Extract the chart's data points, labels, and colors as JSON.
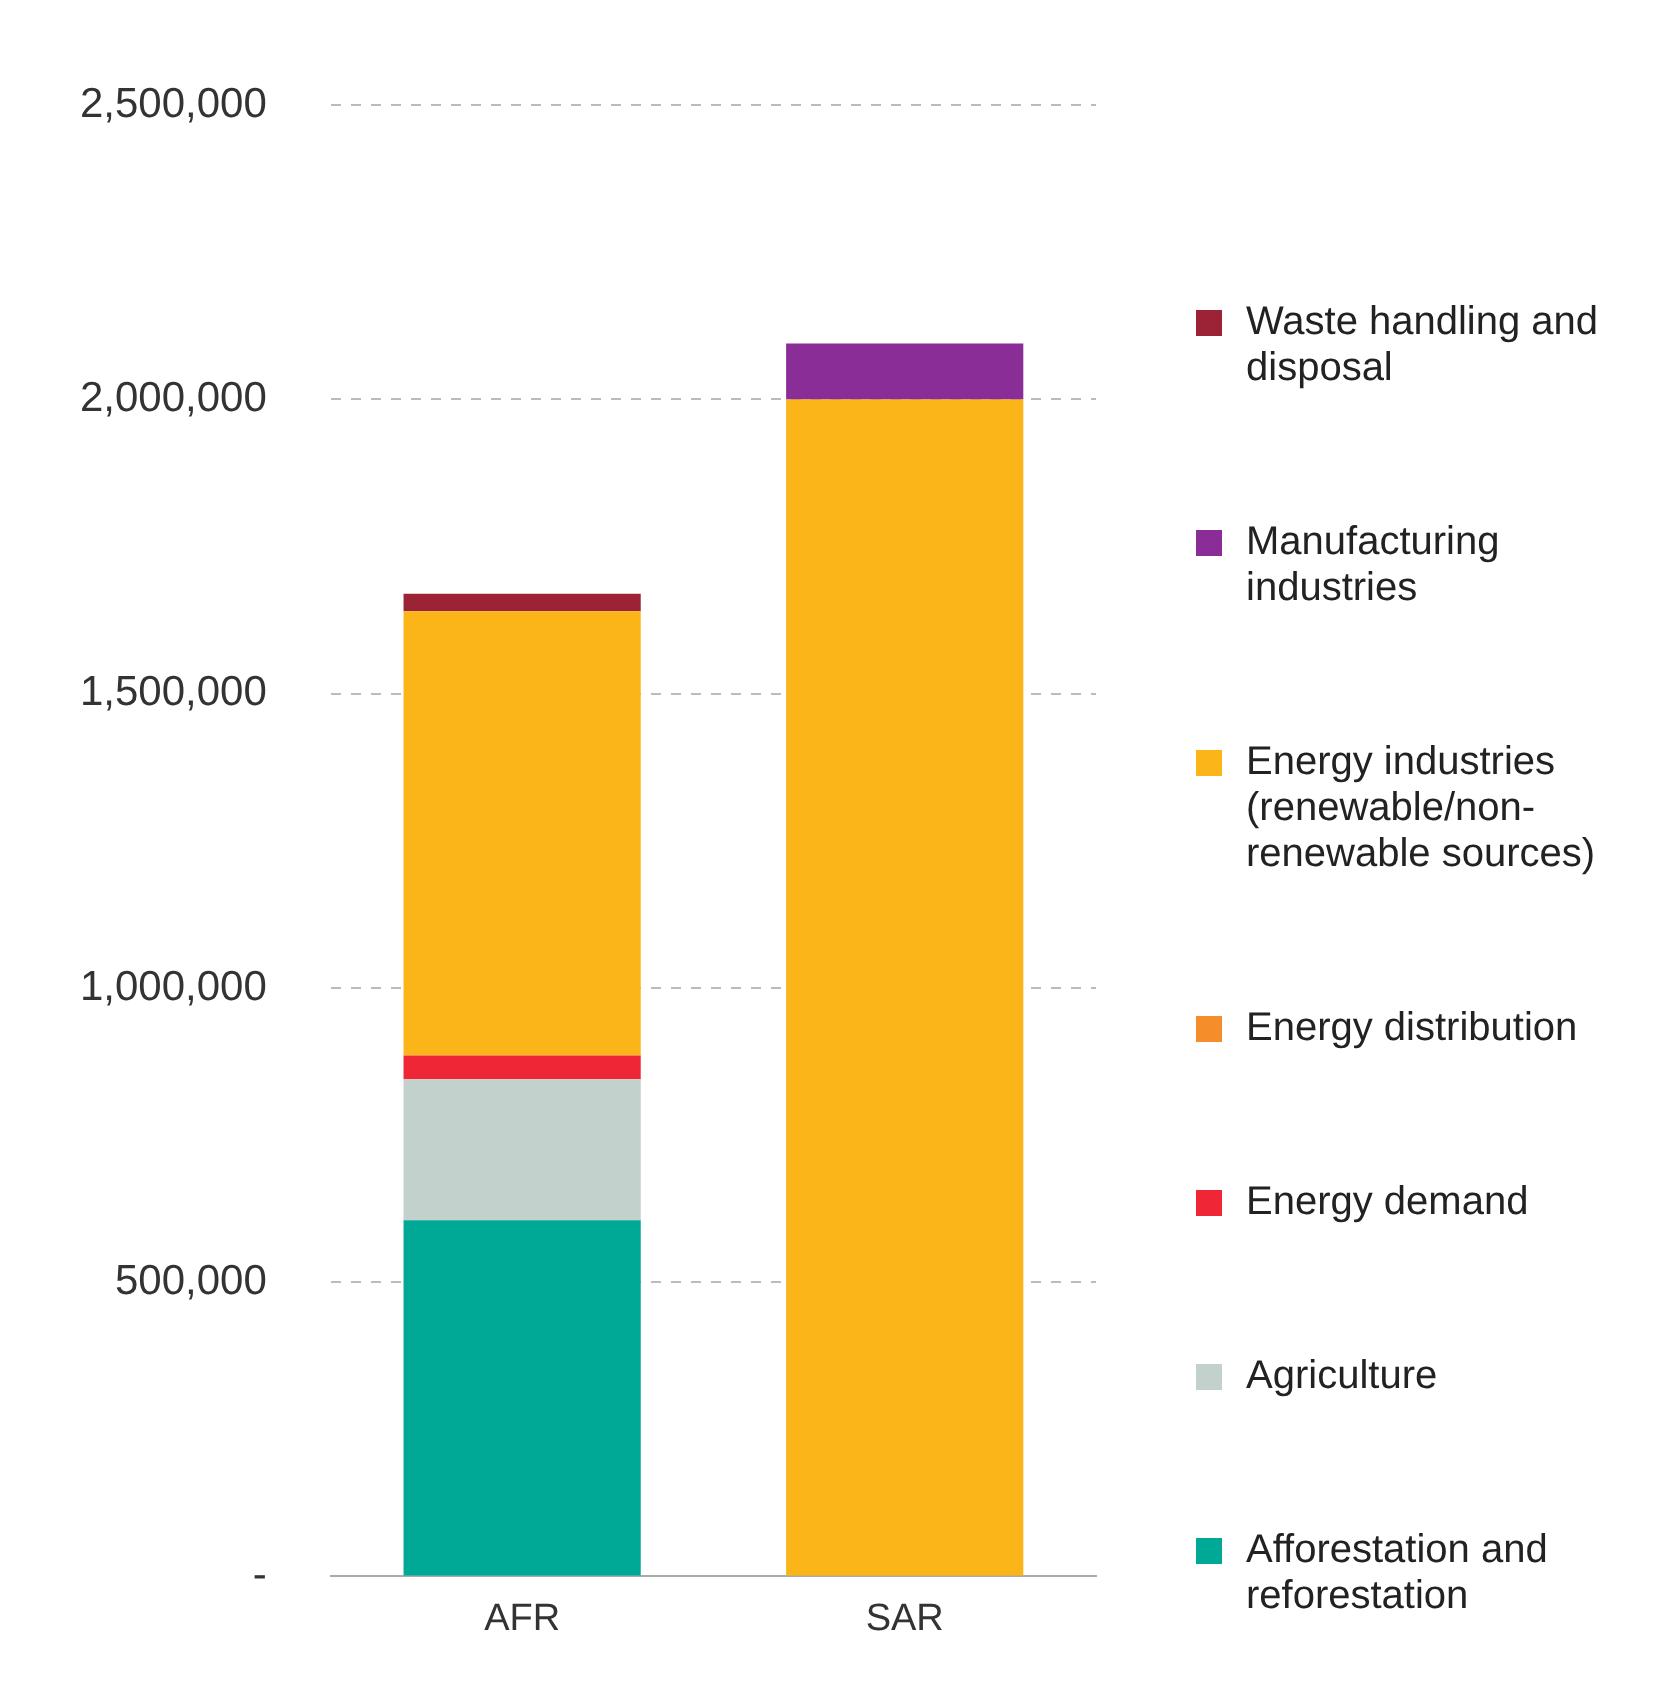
{
  "chart_data": {
    "type": "bar",
    "stacked": true,
    "categories": [
      "AFR",
      "SAR"
    ],
    "series": [
      {
        "name": "Afforestation and reforestation",
        "color": "#00a896",
        "values": [
          605000,
          0
        ]
      },
      {
        "name": "Agriculture",
        "color": "#c2d1cb",
        "values": [
          240000,
          0
        ]
      },
      {
        "name": "Energy demand",
        "color": "#ef2636",
        "values": [
          40000,
          0
        ]
      },
      {
        "name": "Energy distribution",
        "color": "#f58d2a",
        "values": [
          0,
          0
        ]
      },
      {
        "name": "Energy industries (renewable/non-renewable sources)",
        "color": "#fbb519",
        "values": [
          755000,
          2000000
        ]
      },
      {
        "name": "Manufacturing industries",
        "color": "#8b2d96",
        "values": [
          0,
          95000
        ]
      },
      {
        "name": "Waste handling and disposal",
        "color": "#9b2335",
        "values": [
          30000,
          0
        ]
      }
    ],
    "ylim": [
      0,
      2500000
    ],
    "yticks": [
      {
        "value": 0,
        "label": "-"
      },
      {
        "value": 500000,
        "label": "500,000"
      },
      {
        "value": 1000000,
        "label": "1,000,000"
      },
      {
        "value": 1500000,
        "label": "1,500,000"
      },
      {
        "value": 2000000,
        "label": "2,000,000"
      },
      {
        "value": 2500000,
        "label": "2,500,000"
      }
    ],
    "grid": "y",
    "legend": "right"
  }
}
